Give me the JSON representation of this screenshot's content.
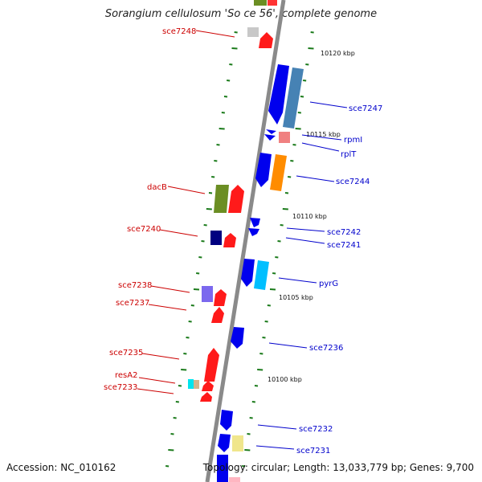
{
  "title": "Sorangium cellulosum 'So ce 56', complete genome",
  "footer": {
    "accession": "Accession: NC_010162",
    "summary": "Topology: circular; Length: 13,033,779 bp; Genes: 9,700"
  },
  "colors": {
    "forward_label": "#cc0000",
    "reverse_label": "#0000cc",
    "backbone": "#8a8a8a",
    "tick": "#1a7a1a"
  },
  "scale_labels": [
    "10120 kbp",
    "10115 kbp",
    "10110 kbp",
    "10105 kbp",
    "10100 kbp"
  ],
  "gene_labels": {
    "forward": [
      "sce7248",
      "dacB",
      "sce7240",
      "sce7238",
      "sce7237",
      "sce7235",
      "resA2",
      "sce7233"
    ],
    "reverse": [
      "sce7247",
      "rpmI",
      "rplT",
      "sce7244",
      "sce7242",
      "sce7241",
      "pyrG",
      "sce7236",
      "sce7232",
      "sce7231"
    ]
  }
}
